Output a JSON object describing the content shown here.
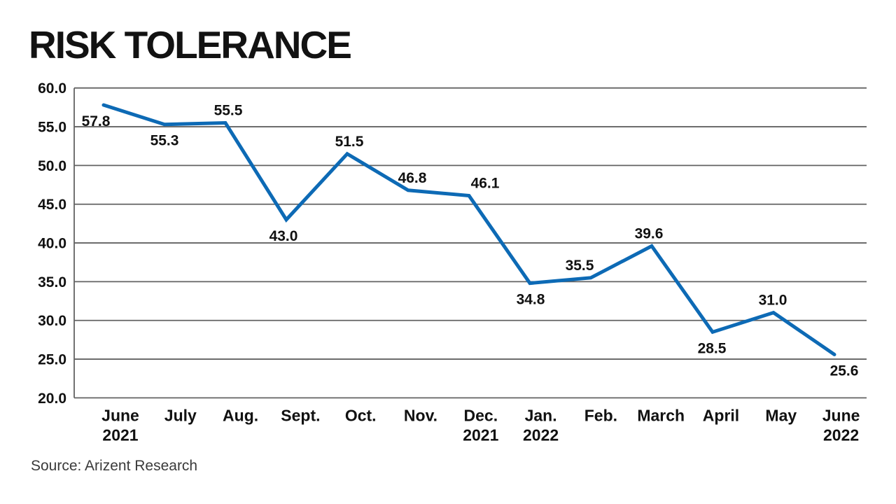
{
  "chart_data": {
    "type": "line",
    "title": "RISK TOLERANCE",
    "source": "Source: Arizent Research",
    "categories": [
      "June 2021",
      "July",
      "Aug.",
      "Sept.",
      "Oct.",
      "Nov.",
      "Dec. 2021",
      "Jan. 2022",
      "Feb.",
      "March",
      "April",
      "May",
      "June 2022"
    ],
    "x_labels": [
      [
        "June",
        "2021"
      ],
      [
        "July"
      ],
      [
        "Aug."
      ],
      [
        "Sept."
      ],
      [
        "Oct."
      ],
      [
        "Nov."
      ],
      [
        "Dec.",
        "2021"
      ],
      [
        "Jan.",
        "2022"
      ],
      [
        "Feb."
      ],
      [
        "March"
      ],
      [
        "April"
      ],
      [
        "May"
      ],
      [
        "June",
        "2022"
      ]
    ],
    "values": [
      57.8,
      55.3,
      55.5,
      43.0,
      51.5,
      46.8,
      46.1,
      34.8,
      35.5,
      39.6,
      28.5,
      31.0,
      25.6
    ],
    "y_ticks": [
      60.0,
      55.0,
      50.0,
      45.0,
      40.0,
      35.0,
      30.0,
      25.0,
      20.0
    ],
    "ylim": [
      20,
      60
    ],
    "xlabel": "",
    "ylabel": "",
    "grid": true,
    "legend": "none",
    "line_color": "#0d6ab5",
    "grid_color": "#636363",
    "label_color": "#111111",
    "value_label_sides": [
      "below",
      "below",
      "above",
      "below",
      "above",
      "above",
      "above",
      "below",
      "above",
      "above",
      "below",
      "above",
      "below"
    ],
    "value_label_dx": [
      -11,
      0,
      4,
      -4,
      3,
      6,
      23,
      1,
      -16,
      -4,
      -1,
      -1,
      14
    ]
  }
}
